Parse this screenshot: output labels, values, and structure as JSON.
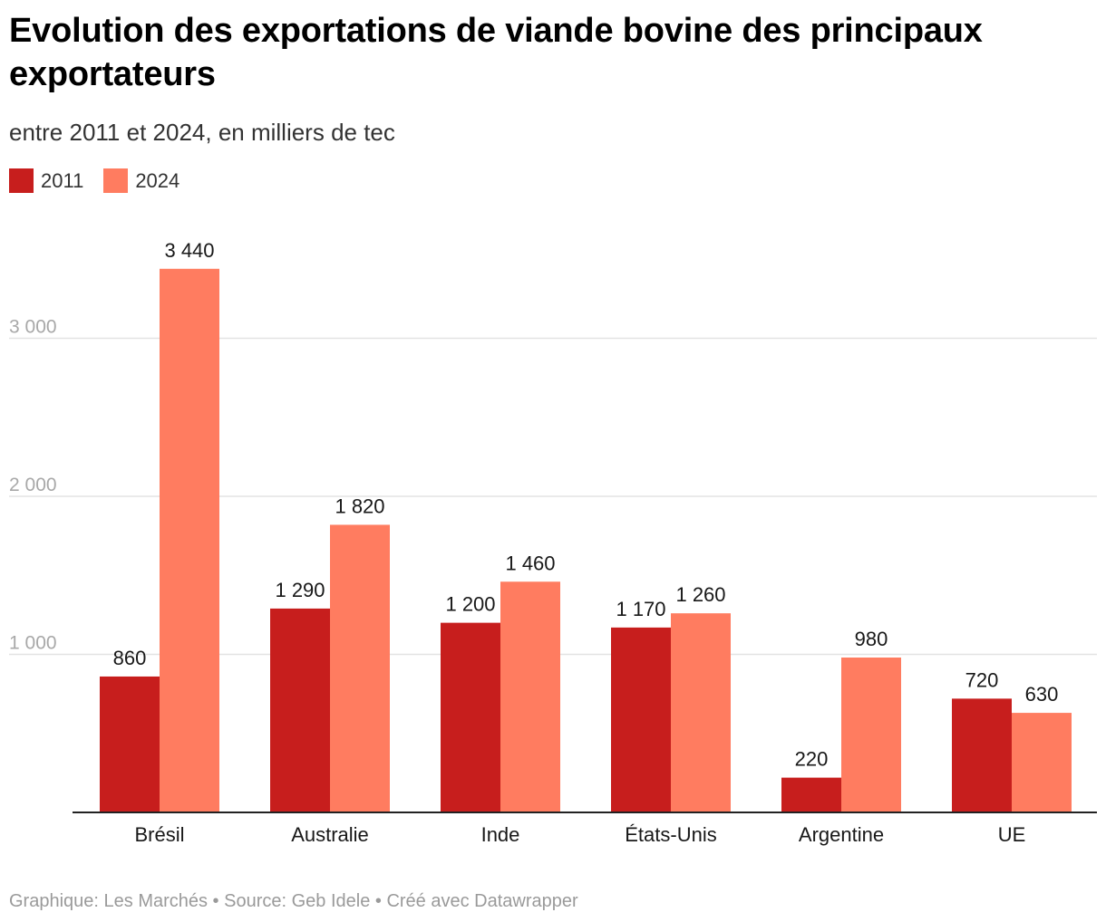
{
  "title": "Evolution des exportations de viande bovine des principaux exportateurs",
  "subtitle": "entre 2011 et 2024, en milliers de tec",
  "legend": [
    {
      "label": "2011",
      "color": "#c71e1d"
    },
    {
      "label": "2024",
      "color": "#ff7c60"
    }
  ],
  "footer": "Graphique: Les Marchés • Source: Geb Idele • Créé avec Datawrapper",
  "chart_data": {
    "type": "bar",
    "title": "Evolution des exportations de viande bovine des principaux exportateurs",
    "subtitle": "entre 2011 et 2024, en milliers de tec",
    "xlabel": "",
    "ylabel": "",
    "categories": [
      "Brésil",
      "Australie",
      "Inde",
      "États-Unis",
      "Argentine",
      "UE"
    ],
    "series": [
      {
        "name": "2011",
        "color": "#c71e1d",
        "values": [
          860,
          1290,
          1200,
          1170,
          220,
          720
        ],
        "labels": [
          "860",
          "1 290",
          "1 200",
          "1 170",
          "220",
          "720"
        ]
      },
      {
        "name": "2024",
        "color": "#ff7c60",
        "values": [
          3440,
          1820,
          1460,
          1260,
          980,
          630
        ],
        "labels": [
          "3 440",
          "1 820",
          "1 460",
          "1 260",
          "980",
          "630"
        ]
      }
    ],
    "yticks": [
      1000,
      2000,
      3000
    ],
    "ytick_labels": [
      "1 000",
      "2 000",
      "3 000"
    ],
    "ylim": [
      0,
      3440
    ],
    "grid": true,
    "legend_position": "top-left"
  }
}
